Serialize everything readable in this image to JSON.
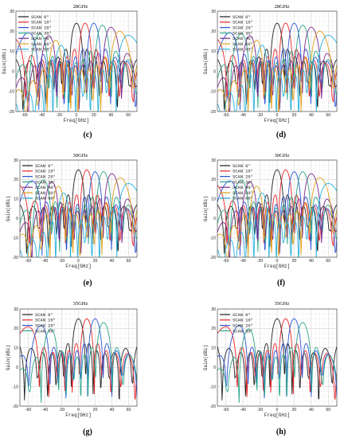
{
  "figure": {
    "panel_letters": [
      "(c)",
      "(d)",
      "(e)",
      "(f)",
      "(g)",
      "(h)"
    ]
  },
  "chart_data": [
    {
      "type": "line",
      "panel": "(c)",
      "title": "28GHz",
      "xlabel": "Freq[GHz]",
      "ylabel": "Gain(dBi)",
      "xlim": [
        -70,
        70
      ],
      "ylim": [
        -20,
        30
      ],
      "xticks": [
        -60,
        -40,
        -20,
        0,
        20,
        40,
        60
      ],
      "yticks": [
        30,
        20,
        10,
        0,
        -10,
        -20
      ],
      "grid": true,
      "legend_position": "top-left",
      "series": [
        {
          "name": "SCAN 0°",
          "color": "#222222",
          "peak_x": 0,
          "peak_y": 24
        },
        {
          "name": "SCAN 10°",
          "color": "#e8262b",
          "peak_x": 10,
          "peak_y": 24
        },
        {
          "name": "SCAN 20°",
          "color": "#2d55d6",
          "peak_x": 20,
          "peak_y": 24
        },
        {
          "name": "SCAN 30°",
          "color": "#2aa68a",
          "peak_x": 30,
          "peak_y": 23
        },
        {
          "name": "SCAN 40°",
          "color": "#7a2a8c",
          "peak_x": 40,
          "peak_y": 22
        },
        {
          "name": "SCAN 50°",
          "color": "#e0a21a",
          "peak_x": 50,
          "peak_y": 20
        },
        {
          "name": "SCAN 60°",
          "color": "#27b3e0",
          "peak_x": 60,
          "peak_y": 18
        }
      ]
    },
    {
      "type": "line",
      "panel": "(d)",
      "title": "28GHz",
      "xlabel": "Freq[GHz]",
      "ylabel": "Gain(dBi)",
      "xlim": [
        -70,
        70
      ],
      "ylim": [
        -20,
        30
      ],
      "xticks": [
        -60,
        -40,
        -20,
        0,
        20,
        40,
        60
      ],
      "yticks": [
        30,
        20,
        10,
        0,
        -10,
        -20
      ],
      "grid": true,
      "legend_position": "top-left",
      "series": [
        {
          "name": "SCAN 0°",
          "color": "#222222",
          "peak_x": 0,
          "peak_y": 24
        },
        {
          "name": "SCAN 10°",
          "color": "#e8262b",
          "peak_x": 10,
          "peak_y": 24
        },
        {
          "name": "SCAN 20°",
          "color": "#2d55d6",
          "peak_x": 20,
          "peak_y": 24
        },
        {
          "name": "SCAN 30°",
          "color": "#2aa68a",
          "peak_x": 30,
          "peak_y": 23
        },
        {
          "name": "SCAN 40°",
          "color": "#7a2a8c",
          "peak_x": 40,
          "peak_y": 22
        },
        {
          "name": "SCAN 50°",
          "color": "#e0a21a",
          "peak_x": 50,
          "peak_y": 20
        },
        {
          "name": "SCAN 60°",
          "color": "#27b3e0",
          "peak_x": 60,
          "peak_y": 18
        }
      ]
    },
    {
      "type": "line",
      "panel": "(e)",
      "title": "30GHz",
      "xlabel": "Freq[GHz]",
      "ylabel": "Gain(dBi)",
      "xlim": [
        -70,
        70
      ],
      "ylim": [
        -20,
        30
      ],
      "xticks": [
        -60,
        -40,
        -20,
        0,
        20,
        40,
        60
      ],
      "yticks": [
        30,
        20,
        10,
        0,
        -10,
        -20
      ],
      "grid": true,
      "legend_position": "top-left",
      "series": [
        {
          "name": "SCAN 0°",
          "color": "#222222",
          "peak_x": 0,
          "peak_y": 25
        },
        {
          "name": "SCAN 10°",
          "color": "#e8262b",
          "peak_x": 10,
          "peak_y": 25
        },
        {
          "name": "SCAN 20°",
          "color": "#2d55d6",
          "peak_x": 20,
          "peak_y": 24
        },
        {
          "name": "SCAN 30°",
          "color": "#2aa68a",
          "peak_x": 30,
          "peak_y": 24
        },
        {
          "name": "SCAN 40°",
          "color": "#7a2a8c",
          "peak_x": 40,
          "peak_y": 23
        },
        {
          "name": "SCAN 50°",
          "color": "#e0a21a",
          "peak_x": 50,
          "peak_y": 21
        },
        {
          "name": "SCAN 60°",
          "color": "#27b3e0",
          "peak_x": 60,
          "peak_y": 18
        }
      ]
    },
    {
      "type": "line",
      "panel": "(f)",
      "title": "30GHz",
      "xlabel": "Freq[GHz]",
      "ylabel": "Gain(dBi)",
      "xlim": [
        -70,
        70
      ],
      "ylim": [
        -20,
        30
      ],
      "xticks": [
        -60,
        -40,
        -20,
        0,
        20,
        40,
        60
      ],
      "yticks": [
        30,
        20,
        10,
        0,
        -10,
        -20
      ],
      "grid": true,
      "legend_position": "top-left",
      "series": [
        {
          "name": "SCAN 0°",
          "color": "#222222",
          "peak_x": 0,
          "peak_y": 25
        },
        {
          "name": "SCAN 10°",
          "color": "#e8262b",
          "peak_x": 10,
          "peak_y": 25
        },
        {
          "name": "SCAN 20°",
          "color": "#2d55d6",
          "peak_x": 20,
          "peak_y": 24
        },
        {
          "name": "SCAN 30°",
          "color": "#2aa68a",
          "peak_x": 30,
          "peak_y": 24
        },
        {
          "name": "SCAN 40°",
          "color": "#7a2a8c",
          "peak_x": 40,
          "peak_y": 23
        },
        {
          "name": "SCAN 50°",
          "color": "#e0a21a",
          "peak_x": 50,
          "peak_y": 21
        },
        {
          "name": "SCAN 60°",
          "color": "#27b3e0",
          "peak_x": 60,
          "peak_y": 18
        }
      ]
    },
    {
      "type": "line",
      "panel": "(g)",
      "title": "35GHz",
      "xlabel": "Freq[GHz]",
      "ylabel": "Gain(dBi)",
      "xlim": [
        -70,
        70
      ],
      "ylim": [
        -20,
        30
      ],
      "xticks": [
        -60,
        -40,
        -20,
        0,
        20,
        40,
        60
      ],
      "yticks": [
        30,
        20,
        10,
        0,
        -10,
        -20
      ],
      "grid": true,
      "legend_position": "top-left",
      "series": [
        {
          "name": "SCAN 0°",
          "color": "#222222",
          "peak_x": 0,
          "peak_y": 25
        },
        {
          "name": "SCAN 10°",
          "color": "#e8262b",
          "peak_x": 10,
          "peak_y": 25
        },
        {
          "name": "SCAN 20°",
          "color": "#2d55d6",
          "peak_x": 20,
          "peak_y": 25
        },
        {
          "name": "SCAN 30°",
          "color": "#2aa68a",
          "peak_x": 30,
          "peak_y": 23
        }
      ]
    },
    {
      "type": "line",
      "panel": "(h)",
      "title": "35GHz",
      "xlabel": "Freq[GHz]",
      "ylabel": "Gain(dBi)",
      "xlim": [
        -70,
        70
      ],
      "ylim": [
        -20,
        30
      ],
      "xticks": [
        -60,
        -40,
        -20,
        0,
        20,
        40,
        60
      ],
      "yticks": [
        30,
        20,
        10,
        0,
        -10,
        -20
      ],
      "grid": true,
      "legend_position": "top-left",
      "series": [
        {
          "name": "SCAN 0°",
          "color": "#222222",
          "peak_x": 0,
          "peak_y": 25
        },
        {
          "name": "SCAN 10°",
          "color": "#e8262b",
          "peak_x": 10,
          "peak_y": 25
        },
        {
          "name": "SCAN 20°",
          "color": "#2d55d6",
          "peak_x": 20,
          "peak_y": 25
        },
        {
          "name": "SCAN 30°",
          "color": "#2aa68a",
          "peak_x": 30,
          "peak_y": 23
        }
      ]
    }
  ]
}
